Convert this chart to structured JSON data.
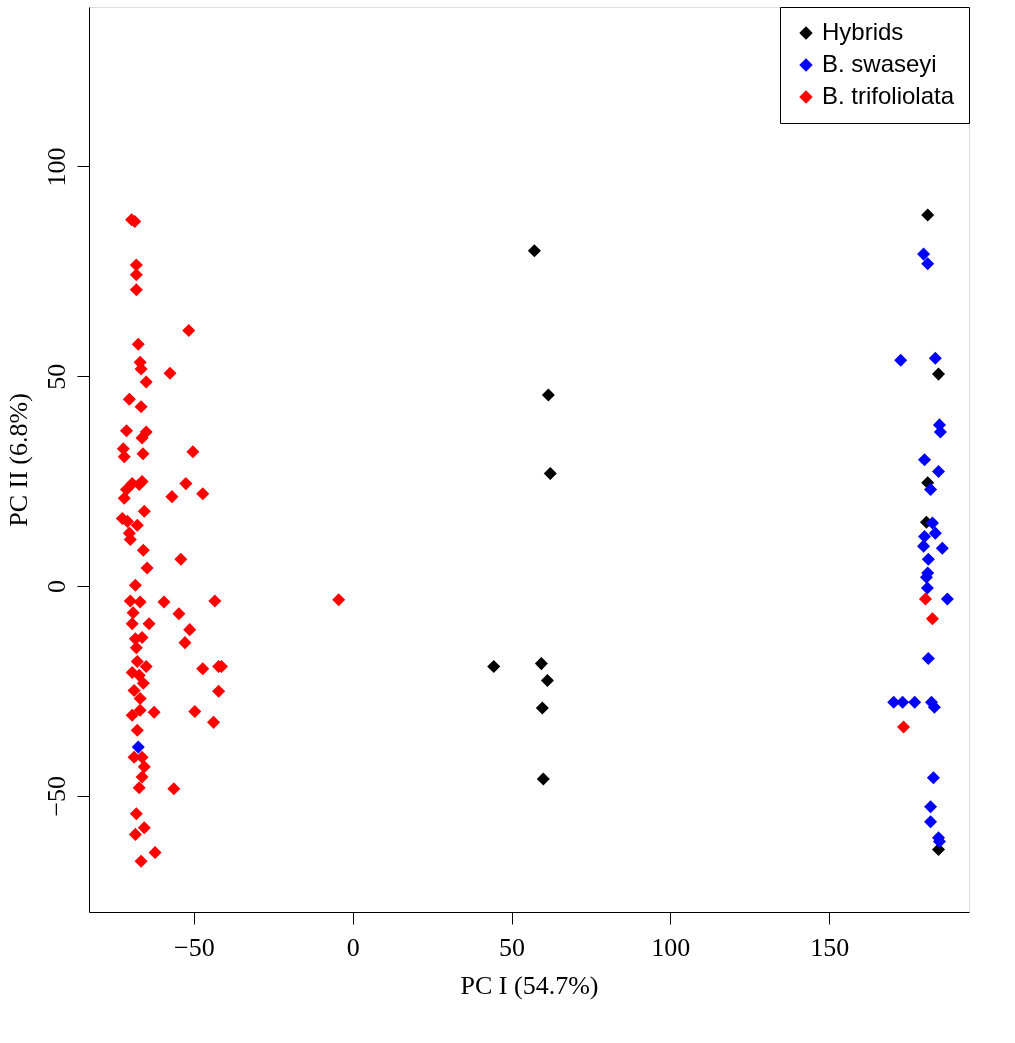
{
  "chart_data": {
    "type": "scatter",
    "xlabel": "PC I (54.7%)",
    "ylabel": "PC II (6.8%)",
    "xlim": [
      -83,
      194
    ],
    "ylim": [
      -77.7,
      138
    ],
    "xticks": [
      -50,
      0,
      50,
      100,
      150
    ],
    "yticks": [
      -50,
      0,
      50,
      100
    ],
    "grid": false,
    "legend": "top right",
    "marker": "diamond",
    "series": [
      {
        "name": "Hybrids",
        "color": "#000000",
        "x": [
          57.2,
          61.6,
          62.2,
          44.4,
          59.4,
          61.3,
          59.7,
          60,
          181,
          184.4,
          181,
          180.6,
          184.4
        ],
        "values": [
          79.9,
          45.5,
          26.8,
          -19.2,
          -18.5,
          -22.5,
          -29.1,
          -46,
          88.4,
          50.5,
          24.6,
          15.2,
          -62.8
        ]
      },
      {
        "name": "B. swaseyi",
        "color": "#0000ff",
        "x": [
          179.7,
          181,
          172.5,
          183.4,
          184.7,
          185,
          180,
          184.4,
          181.9,
          182.5,
          183.4,
          180,
          179.7,
          185.6,
          181.2,
          181,
          180.6,
          180.9,
          187.2,
          181.2,
          170.3,
          173.1,
          176.9,
          182.2,
          183.1,
          182.8,
          181.9,
          181.9,
          184.4,
          184.7,
          -67.5
        ],
        "values": [
          79.1,
          76.8,
          53.8,
          54.3,
          38.4,
          36.7,
          30.1,
          27.3,
          23,
          15,
          12.6,
          11.8,
          9.5,
          9,
          6.4,
          3.1,
          2.1,
          -0.5,
          -3.1,
          -17.3,
          -27.7,
          -27.7,
          -27.7,
          -27.7,
          -28.9,
          -45.7,
          -52.6,
          -56.2,
          -60,
          -60.9,
          -38.4
        ]
      },
      {
        "name": "B. trifoliolata",
        "color": "#ff0000",
        "x": [
          -69.6,
          -68.6,
          -68.1,
          -68.1,
          -68.1,
          -51.6,
          -67.5,
          -66.9,
          -66.6,
          -65,
          -57.5,
          -70.3,
          -66.6,
          -71.2,
          -65,
          -66.3,
          -72.2,
          -71.9,
          -66,
          -50.3,
          -69.4,
          -66.3,
          -71.2,
          -67.2,
          -52.5,
          -56.9,
          -47.2,
          -71.9,
          -65.6,
          -72.5,
          -70.9,
          -67.8,
          -70.3,
          -70,
          -65.9,
          -54.1,
          -64.7,
          -68.4,
          -70,
          -66.9,
          -59.4,
          -43.4,
          -54.7,
          -69.1,
          -69.4,
          -64.1,
          -51.3,
          -68.4,
          -66.3,
          -52.8,
          -68.1,
          -67.8,
          -65,
          -47.2,
          -42.2,
          -41.3,
          -69.4,
          -67.2,
          -65.9,
          -68.8,
          -42.2,
          -66.9,
          -62.5,
          -49.7,
          -69.4,
          -66.9,
          -43.8,
          -67.8,
          -68.8,
          -66.3,
          -65.6,
          -66.3,
          -67.2,
          -56.3,
          -68.1,
          -65.6,
          -68.4,
          -62.2,
          -66.6,
          -4.4,
          180.3,
          182.5,
          173.4
        ],
        "values": [
          87.3,
          86.9,
          76.5,
          74.2,
          70.6,
          60.9,
          57.6,
          53.3,
          51.7,
          48.6,
          50.7,
          44.5,
          42.7,
          37,
          36.7,
          35.3,
          32.7,
          30.8,
          31.5,
          32,
          24.4,
          24.9,
          23,
          24.2,
          24.4,
          21.3,
          22,
          20.9,
          17.8,
          16.1,
          15.4,
          14.5,
          12.6,
          11.1,
          8.5,
          6.4,
          4.3,
          0.2,
          -3.6,
          -3.8,
          -3.8,
          -3.6,
          -6.6,
          -6.4,
          -9,
          -9,
          -10.4,
          -12.6,
          -12.3,
          -13.5,
          -14.7,
          -18,
          -19.2,
          -19.7,
          -19.2,
          -19.2,
          -20.6,
          -21.3,
          -23.2,
          -24.9,
          -25.1,
          -26.8,
          -30.1,
          -29.9,
          -30.8,
          -29.6,
          -32.5,
          -34.4,
          -40.8,
          -40.8,
          -43.1,
          -45.5,
          -48.1,
          -48.3,
          -54.3,
          -57.6,
          -59.2,
          -63.5,
          -65.6,
          -3.3,
          -3.1,
          -7.8,
          -33.6
        ]
      }
    ]
  }
}
